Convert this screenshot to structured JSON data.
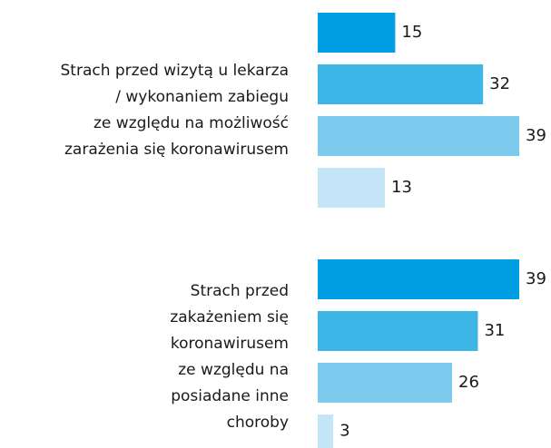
{
  "chart_data": {
    "type": "bar",
    "orientation": "horizontal",
    "categories": [
      "Strach przed wizytą u lekarza\n/ wykonaniem zabiegu\nze względu na możliwość\nzarażenia się koronawirusem",
      "Strach przed\nzakażeniem się\nkoronawirusem\nze względu na\nposiadane inne\nchoroby"
    ],
    "series": [
      {
        "color": "#009fe3",
        "values": [
          15,
          39
        ]
      },
      {
        "color": "#3db5e6",
        "values": [
          32,
          31
        ]
      },
      {
        "color": "#7ccbef",
        "values": [
          39,
          26
        ]
      },
      {
        "color": "#c3e5f7",
        "values": [
          13,
          3
        ]
      }
    ]
  }
}
